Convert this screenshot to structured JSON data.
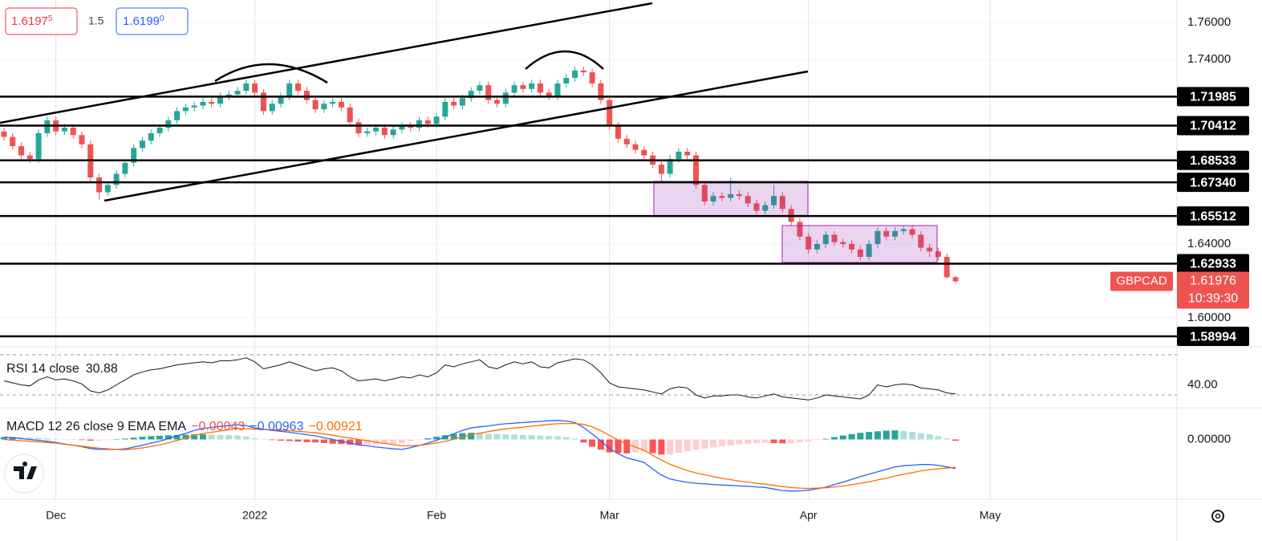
{
  "chart_data": {
    "type": "candlestick",
    "symbol": "GBPCAD",
    "countdown": "10:39:30",
    "quote": {
      "bid": "1.6197",
      "bid_pip": "5",
      "spread": "1.5",
      "ask": "1.6199",
      "ask_pip": "0"
    },
    "colors": {
      "up": "#26a69a",
      "down": "#ef5350"
    },
    "xlim": [
      -0.46,
      135.6
    ],
    "xticks": [
      {
        "value": 6,
        "label": "Dec"
      },
      {
        "value": 29,
        "label": "2022"
      },
      {
        "value": 50,
        "label": "Feb"
      },
      {
        "value": 70,
        "label": "Mar"
      },
      {
        "value": 93,
        "label": "Apr"
      },
      {
        "value": 114,
        "label": "May"
      }
    ],
    "ylim": [
      1.5843,
      1.7722
    ],
    "yticks": [
      {
        "value": 1.76,
        "label": "1.76000"
      },
      {
        "value": 1.74,
        "label": "1.74000"
      },
      {
        "value": 1.64,
        "label": "1.64000"
      },
      {
        "value": 1.6,
        "label": "1.60000"
      }
    ],
    "levels": [
      1.71985,
      1.70412,
      1.68533,
      {
        "value": 1.6734,
        "label": "1.67340"
      },
      1.65512,
      1.62933,
      1.58994
    ],
    "ohlc": [
      [
        1.701,
        1.703,
        1.696,
        1.698
      ],
      [
        1.698,
        1.7,
        1.691,
        1.693
      ],
      [
        1.693,
        1.695,
        1.686,
        1.688
      ],
      [
        1.688,
        1.69,
        1.684,
        1.686
      ],
      [
        1.686,
        1.702,
        1.684,
        1.7
      ],
      [
        1.7,
        1.709,
        1.698,
        1.707
      ],
      [
        1.707,
        1.709,
        1.699,
        1.701
      ],
      [
        1.701,
        1.705,
        1.699,
        1.703
      ],
      [
        1.703,
        1.705,
        1.697,
        1.699
      ],
      [
        1.699,
        1.701,
        1.692,
        1.694
      ],
      [
        1.694,
        1.696,
        1.674,
        1.676
      ],
      [
        1.676,
        1.678,
        1.664,
        1.668
      ],
      [
        1.668,
        1.674,
        1.666,
        1.672
      ],
      [
        1.672,
        1.68,
        1.67,
        1.678
      ],
      [
        1.678,
        1.686,
        1.676,
        1.684
      ],
      [
        1.684,
        1.694,
        1.682,
        1.692
      ],
      [
        1.692,
        1.698,
        1.69,
        1.696
      ],
      [
        1.696,
        1.702,
        1.694,
        1.7
      ],
      [
        1.7,
        1.705,
        1.698,
        1.703
      ],
      [
        1.703,
        1.709,
        1.701,
        1.707
      ],
      [
        1.707,
        1.714,
        1.705,
        1.712
      ],
      [
        1.712,
        1.716,
        1.71,
        1.714
      ],
      [
        1.714,
        1.717,
        1.712,
        1.715
      ],
      [
        1.715,
        1.719,
        1.713,
        1.717
      ],
      [
        1.717,
        1.719,
        1.714,
        1.716
      ],
      [
        1.716,
        1.722,
        1.714,
        1.72
      ],
      [
        1.72,
        1.723,
        1.718,
        1.721
      ],
      [
        1.721,
        1.725,
        1.719,
        1.723
      ],
      [
        1.723,
        1.729,
        1.721,
        1.727
      ],
      [
        1.727,
        1.729,
        1.72,
        1.722
      ],
      [
        1.722,
        1.724,
        1.71,
        1.712
      ],
      [
        1.712,
        1.718,
        1.71,
        1.716
      ],
      [
        1.716,
        1.722,
        1.714,
        1.72
      ],
      [
        1.72,
        1.729,
        1.718,
        1.727
      ],
      [
        1.727,
        1.729,
        1.721,
        1.723
      ],
      [
        1.723,
        1.725,
        1.716,
        1.718
      ],
      [
        1.718,
        1.72,
        1.711,
        1.713
      ],
      [
        1.713,
        1.718,
        1.711,
        1.716
      ],
      [
        1.716,
        1.719,
        1.714,
        1.717
      ],
      [
        1.717,
        1.719,
        1.712,
        1.714
      ],
      [
        1.714,
        1.716,
        1.704,
        1.706
      ],
      [
        1.706,
        1.708,
        1.698,
        1.7
      ],
      [
        1.7,
        1.703,
        1.698,
        1.701
      ],
      [
        1.701,
        1.705,
        1.699,
        1.703
      ],
      [
        1.703,
        1.705,
        1.697,
        1.699
      ],
      [
        1.699,
        1.704,
        1.697,
        1.702
      ],
      [
        1.702,
        1.706,
        1.7,
        1.704
      ],
      [
        1.704,
        1.706,
        1.701,
        1.703
      ],
      [
        1.703,
        1.709,
        1.701,
        1.707
      ],
      [
        1.707,
        1.709,
        1.703,
        1.705
      ],
      [
        1.705,
        1.711,
        1.703,
        1.709
      ],
      [
        1.709,
        1.719,
        1.707,
        1.717
      ],
      [
        1.717,
        1.719,
        1.713,
        1.715
      ],
      [
        1.715,
        1.721,
        1.713,
        1.719
      ],
      [
        1.719,
        1.725,
        1.717,
        1.723
      ],
      [
        1.723,
        1.728,
        1.721,
        1.726
      ],
      [
        1.726,
        1.728,
        1.716,
        1.718
      ],
      [
        1.718,
        1.72,
        1.714,
        1.716
      ],
      [
        1.716,
        1.724,
        1.714,
        1.722
      ],
      [
        1.722,
        1.728,
        1.72,
        1.726
      ],
      [
        1.726,
        1.728,
        1.722,
        1.724
      ],
      [
        1.724,
        1.729,
        1.722,
        1.727
      ],
      [
        1.727,
        1.729,
        1.72,
        1.722
      ],
      [
        1.722,
        1.724,
        1.718,
        1.72
      ],
      [
        1.72,
        1.729,
        1.718,
        1.727
      ],
      [
        1.727,
        1.732,
        1.725,
        1.73
      ],
      [
        1.73,
        1.736,
        1.728,
        1.734
      ],
      [
        1.734,
        1.736,
        1.731,
        1.733
      ],
      [
        1.733,
        1.735,
        1.725,
        1.727
      ],
      [
        1.727,
        1.729,
        1.716,
        1.718
      ],
      [
        1.718,
        1.72,
        1.702,
        1.704
      ],
      [
        1.704,
        1.706,
        1.695,
        1.697
      ],
      [
        1.697,
        1.699,
        1.692,
        1.694
      ],
      [
        1.694,
        1.696,
        1.689,
        1.691
      ],
      [
        1.691,
        1.693,
        1.686,
        1.688
      ],
      [
        1.688,
        1.69,
        1.681,
        1.683
      ],
      [
        1.683,
        1.685,
        1.674,
        1.678
      ],
      [
        1.678,
        1.688,
        1.676,
        1.686
      ],
      [
        1.686,
        1.692,
        1.684,
        1.69
      ],
      [
        1.69,
        1.692,
        1.686,
        1.688
      ],
      [
        1.688,
        1.69,
        1.67,
        1.672
      ],
      [
        1.672,
        1.674,
        1.661,
        1.663
      ],
      [
        1.663,
        1.668,
        1.661,
        1.666
      ],
      [
        1.666,
        1.668,
        1.663,
        1.665
      ],
      [
        1.665,
        1.676,
        1.663,
        1.667
      ],
      [
        1.667,
        1.669,
        1.664,
        1.666
      ],
      [
        1.666,
        1.668,
        1.66,
        1.662
      ],
      [
        1.662,
        1.664,
        1.656,
        1.658
      ],
      [
        1.658,
        1.663,
        1.656,
        1.661
      ],
      [
        1.661,
        1.672,
        1.659,
        1.666
      ],
      [
        1.666,
        1.668,
        1.657,
        1.659
      ],
      [
        1.659,
        1.661,
        1.65,
        1.652
      ],
      [
        1.652,
        1.654,
        1.642,
        1.644
      ],
      [
        1.644,
        1.646,
        1.635,
        1.637
      ],
      [
        1.637,
        1.642,
        1.635,
        1.64
      ],
      [
        1.64,
        1.647,
        1.638,
        1.645
      ],
      [
        1.645,
        1.647,
        1.639,
        1.641
      ],
      [
        1.641,
        1.643,
        1.638,
        1.64
      ],
      [
        1.64,
        1.642,
        1.635,
        1.637
      ],
      [
        1.637,
        1.639,
        1.631,
        1.633
      ],
      [
        1.633,
        1.642,
        1.631,
        1.64
      ],
      [
        1.64,
        1.649,
        1.638,
        1.647
      ],
      [
        1.647,
        1.649,
        1.642,
        1.644
      ],
      [
        1.644,
        1.649,
        1.642,
        1.647
      ],
      [
        1.647,
        1.65,
        1.645,
        1.648
      ],
      [
        1.648,
        1.65,
        1.643,
        1.645
      ],
      [
        1.645,
        1.647,
        1.636,
        1.638
      ],
      [
        1.638,
        1.64,
        1.633,
        1.636
      ],
      [
        1.636,
        1.638,
        1.631,
        1.633
      ],
      [
        1.633,
        1.635,
        1.621,
        1.622
      ],
      [
        1.622,
        1.6225,
        1.6188,
        1.61976
      ]
    ],
    "rsi": {
      "title": "RSI 14 close",
      "color": "#131722",
      "ylim": [
        17.2,
        78
      ],
      "yticks": [
        {
          "value": 40,
          "label": "40.00"
        }
      ],
      "bands": [
        30,
        70
      ],
      "values": [
        44,
        42,
        40,
        39,
        45,
        48,
        45,
        46,
        44,
        41,
        34,
        32,
        35,
        40,
        45,
        50,
        53,
        55,
        56,
        58,
        60,
        61,
        62,
        63,
        62,
        64,
        64,
        65,
        67,
        63,
        56,
        58,
        60,
        63,
        60,
        57,
        54,
        56,
        57,
        54,
        48,
        44,
        45,
        46,
        44,
        46,
        48,
        47,
        50,
        48,
        52,
        60,
        58,
        61,
        63,
        65,
        58,
        56,
        60,
        63,
        61,
        63,
        58,
        57,
        62,
        64,
        66,
        65,
        60,
        52,
        42,
        38,
        37,
        36,
        35,
        33,
        31,
        36,
        38,
        37,
        30,
        27,
        29,
        29,
        30,
        30,
        28,
        27,
        29,
        31,
        28,
        27,
        26,
        25,
        27,
        30,
        29,
        28,
        27,
        26,
        30,
        40,
        38,
        40,
        41,
        40,
        37,
        36,
        35,
        32,
        30.88
      ]
    },
    "macd": {
      "title": "MACD 12 26 close 9 EMA EMA",
      "readout": [
        "−0.00043",
        "−0.00963",
        "−0.00921"
      ],
      "ylim": [
        -0.0198,
        0.0105
      ],
      "yticks": [
        {
          "value": 0,
          "label": "0.00000"
        }
      ],
      "histogram": {
        "colors": [
          "#26a69a",
          "#b2dfdb",
          "#ffcdd2",
          "#ff5252"
        ],
        "values": [
          0.0008,
          0.0008,
          0.0007,
          0.0006,
          0.0005,
          0.0004,
          0.0002,
          0.0001,
          0.0,
          -0.0002,
          -0.0004,
          -0.0004,
          -0.0002,
          0.0,
          0.0003,
          0.0006,
          0.0009,
          0.0011,
          0.0012,
          0.0014,
          0.0015,
          0.0016,
          0.0017,
          0.0017,
          0.0016,
          0.0015,
          0.0014,
          0.0013,
          0.001,
          0.0004,
          0.0001,
          -0.0002,
          -0.0004,
          -0.0005,
          -0.0007,
          -0.0009,
          -0.001,
          -0.0012,
          -0.0014,
          -0.0015,
          -0.0017,
          -0.0018,
          -0.0017,
          -0.0016,
          -0.0015,
          -0.0014,
          -0.0012,
          -0.0006,
          -0.0001,
          0.0004,
          0.0009,
          0.0014,
          0.0018,
          0.0021,
          0.0022,
          0.0021,
          0.0019,
          0.0018,
          0.0017,
          0.0016,
          0.0015,
          0.0014,
          0.0013,
          0.0012,
          0.0011,
          0.0008,
          0.0003,
          -0.001,
          -0.0024,
          -0.0034,
          -0.0043,
          -0.0045,
          -0.0046,
          -0.0043,
          -0.004,
          -0.0045,
          -0.005,
          -0.0049,
          -0.0044,
          -0.0039,
          -0.0034,
          -0.003,
          -0.0026,
          -0.0022,
          -0.0019,
          -0.0016,
          -0.0014,
          -0.0012,
          -0.0011,
          -0.0012,
          -0.0013,
          -0.0012,
          -0.0009,
          -0.0006,
          -0.0002,
          0.0002,
          0.0008,
          0.0013,
          0.0018,
          0.0022,
          0.0025,
          0.0027,
          0.0029,
          0.003,
          0.0028,
          0.0025,
          0.0021,
          0.0017,
          0.0011,
          0.0004,
          -0.00043
        ]
      },
      "macd": {
        "color": "#2962ff",
        "values": [
          0.0008,
          0.0006,
          0.0003,
          0.0,
          -0.0003,
          -0.0006,
          -0.001,
          -0.0015,
          -0.0019,
          -0.0024,
          -0.003,
          -0.0033,
          -0.0033,
          -0.0033,
          -0.0031,
          -0.0025,
          -0.0019,
          -0.0012,
          -0.0006,
          0.0003,
          0.0012,
          0.002,
          0.003,
          0.0037,
          0.004,
          0.0043,
          0.0046,
          0.0049,
          0.0046,
          0.0038,
          0.0034,
          0.003,
          0.0027,
          0.0024,
          0.002,
          0.0016,
          0.0012,
          0.0006,
          0.0,
          -0.0006,
          -0.0012,
          -0.0018,
          -0.0021,
          -0.0025,
          -0.0028,
          -0.0031,
          -0.0033,
          -0.0027,
          -0.002,
          -0.0012,
          -0.0003,
          0.0008,
          0.0019,
          0.003,
          0.0038,
          0.0042,
          0.0045,
          0.0049,
          0.0052,
          0.0054,
          0.0056,
          0.0058,
          0.006,
          0.0062,
          0.0063,
          0.0061,
          0.0056,
          0.004,
          0.0018,
          -0.0005,
          -0.003,
          -0.0047,
          -0.0061,
          -0.0068,
          -0.0076,
          -0.0098,
          -0.0118,
          -0.0131,
          -0.0137,
          -0.0142,
          -0.0145,
          -0.0147,
          -0.0149,
          -0.0151,
          -0.0152,
          -0.0154,
          -0.0155,
          -0.0157,
          -0.0159,
          -0.0164,
          -0.0169,
          -0.0171,
          -0.017,
          -0.0168,
          -0.0163,
          -0.0158,
          -0.0149,
          -0.0141,
          -0.0132,
          -0.0123,
          -0.0115,
          -0.0107,
          -0.0099,
          -0.0091,
          -0.0087,
          -0.0085,
          -0.0083,
          -0.0083,
          -0.0086,
          -0.0091,
          -0.00963
        ]
      },
      "signal": {
        "color": "#ff6d00",
        "values": [
          0.0,
          -0.0002,
          -0.0004,
          -0.0006,
          -0.0008,
          -0.001,
          -0.0012,
          -0.0016,
          -0.0019,
          -0.0022,
          -0.0026,
          -0.0029,
          -0.0031,
          -0.0033,
          -0.0034,
          -0.0031,
          -0.0028,
          -0.0023,
          -0.0018,
          -0.0011,
          -0.0003,
          0.0004,
          0.0013,
          0.002,
          0.0024,
          0.0028,
          0.0032,
          0.0036,
          0.0036,
          0.0034,
          0.0033,
          0.0032,
          0.0031,
          0.0029,
          0.0027,
          0.0025,
          0.0022,
          0.0018,
          0.0014,
          0.0009,
          0.0005,
          0.0,
          -0.0004,
          -0.0009,
          -0.0013,
          -0.0017,
          -0.0021,
          -0.0021,
          -0.0019,
          -0.0016,
          -0.0012,
          -0.0006,
          0.0001,
          0.0009,
          0.0016,
          0.0021,
          0.0026,
          0.0031,
          0.0035,
          0.0038,
          0.0041,
          0.0044,
          0.0047,
          0.005,
          0.0052,
          0.0053,
          0.0053,
          0.005,
          0.0042,
          0.0029,
          0.0013,
          -0.0002,
          -0.0015,
          -0.0025,
          -0.0036,
          -0.0053,
          -0.0068,
          -0.0082,
          -0.0093,
          -0.0103,
          -0.0111,
          -0.0117,
          -0.0123,
          -0.0129,
          -0.0133,
          -0.0138,
          -0.0141,
          -0.0145,
          -0.0148,
          -0.0152,
          -0.0156,
          -0.0159,
          -0.0161,
          -0.0162,
          -0.0161,
          -0.016,
          -0.0157,
          -0.0154,
          -0.015,
          -0.0145,
          -0.014,
          -0.0134,
          -0.0128,
          -0.0121,
          -0.0115,
          -0.011,
          -0.0104,
          -0.01,
          -0.0097,
          -0.0095,
          -0.00921
        ]
      }
    }
  }
}
